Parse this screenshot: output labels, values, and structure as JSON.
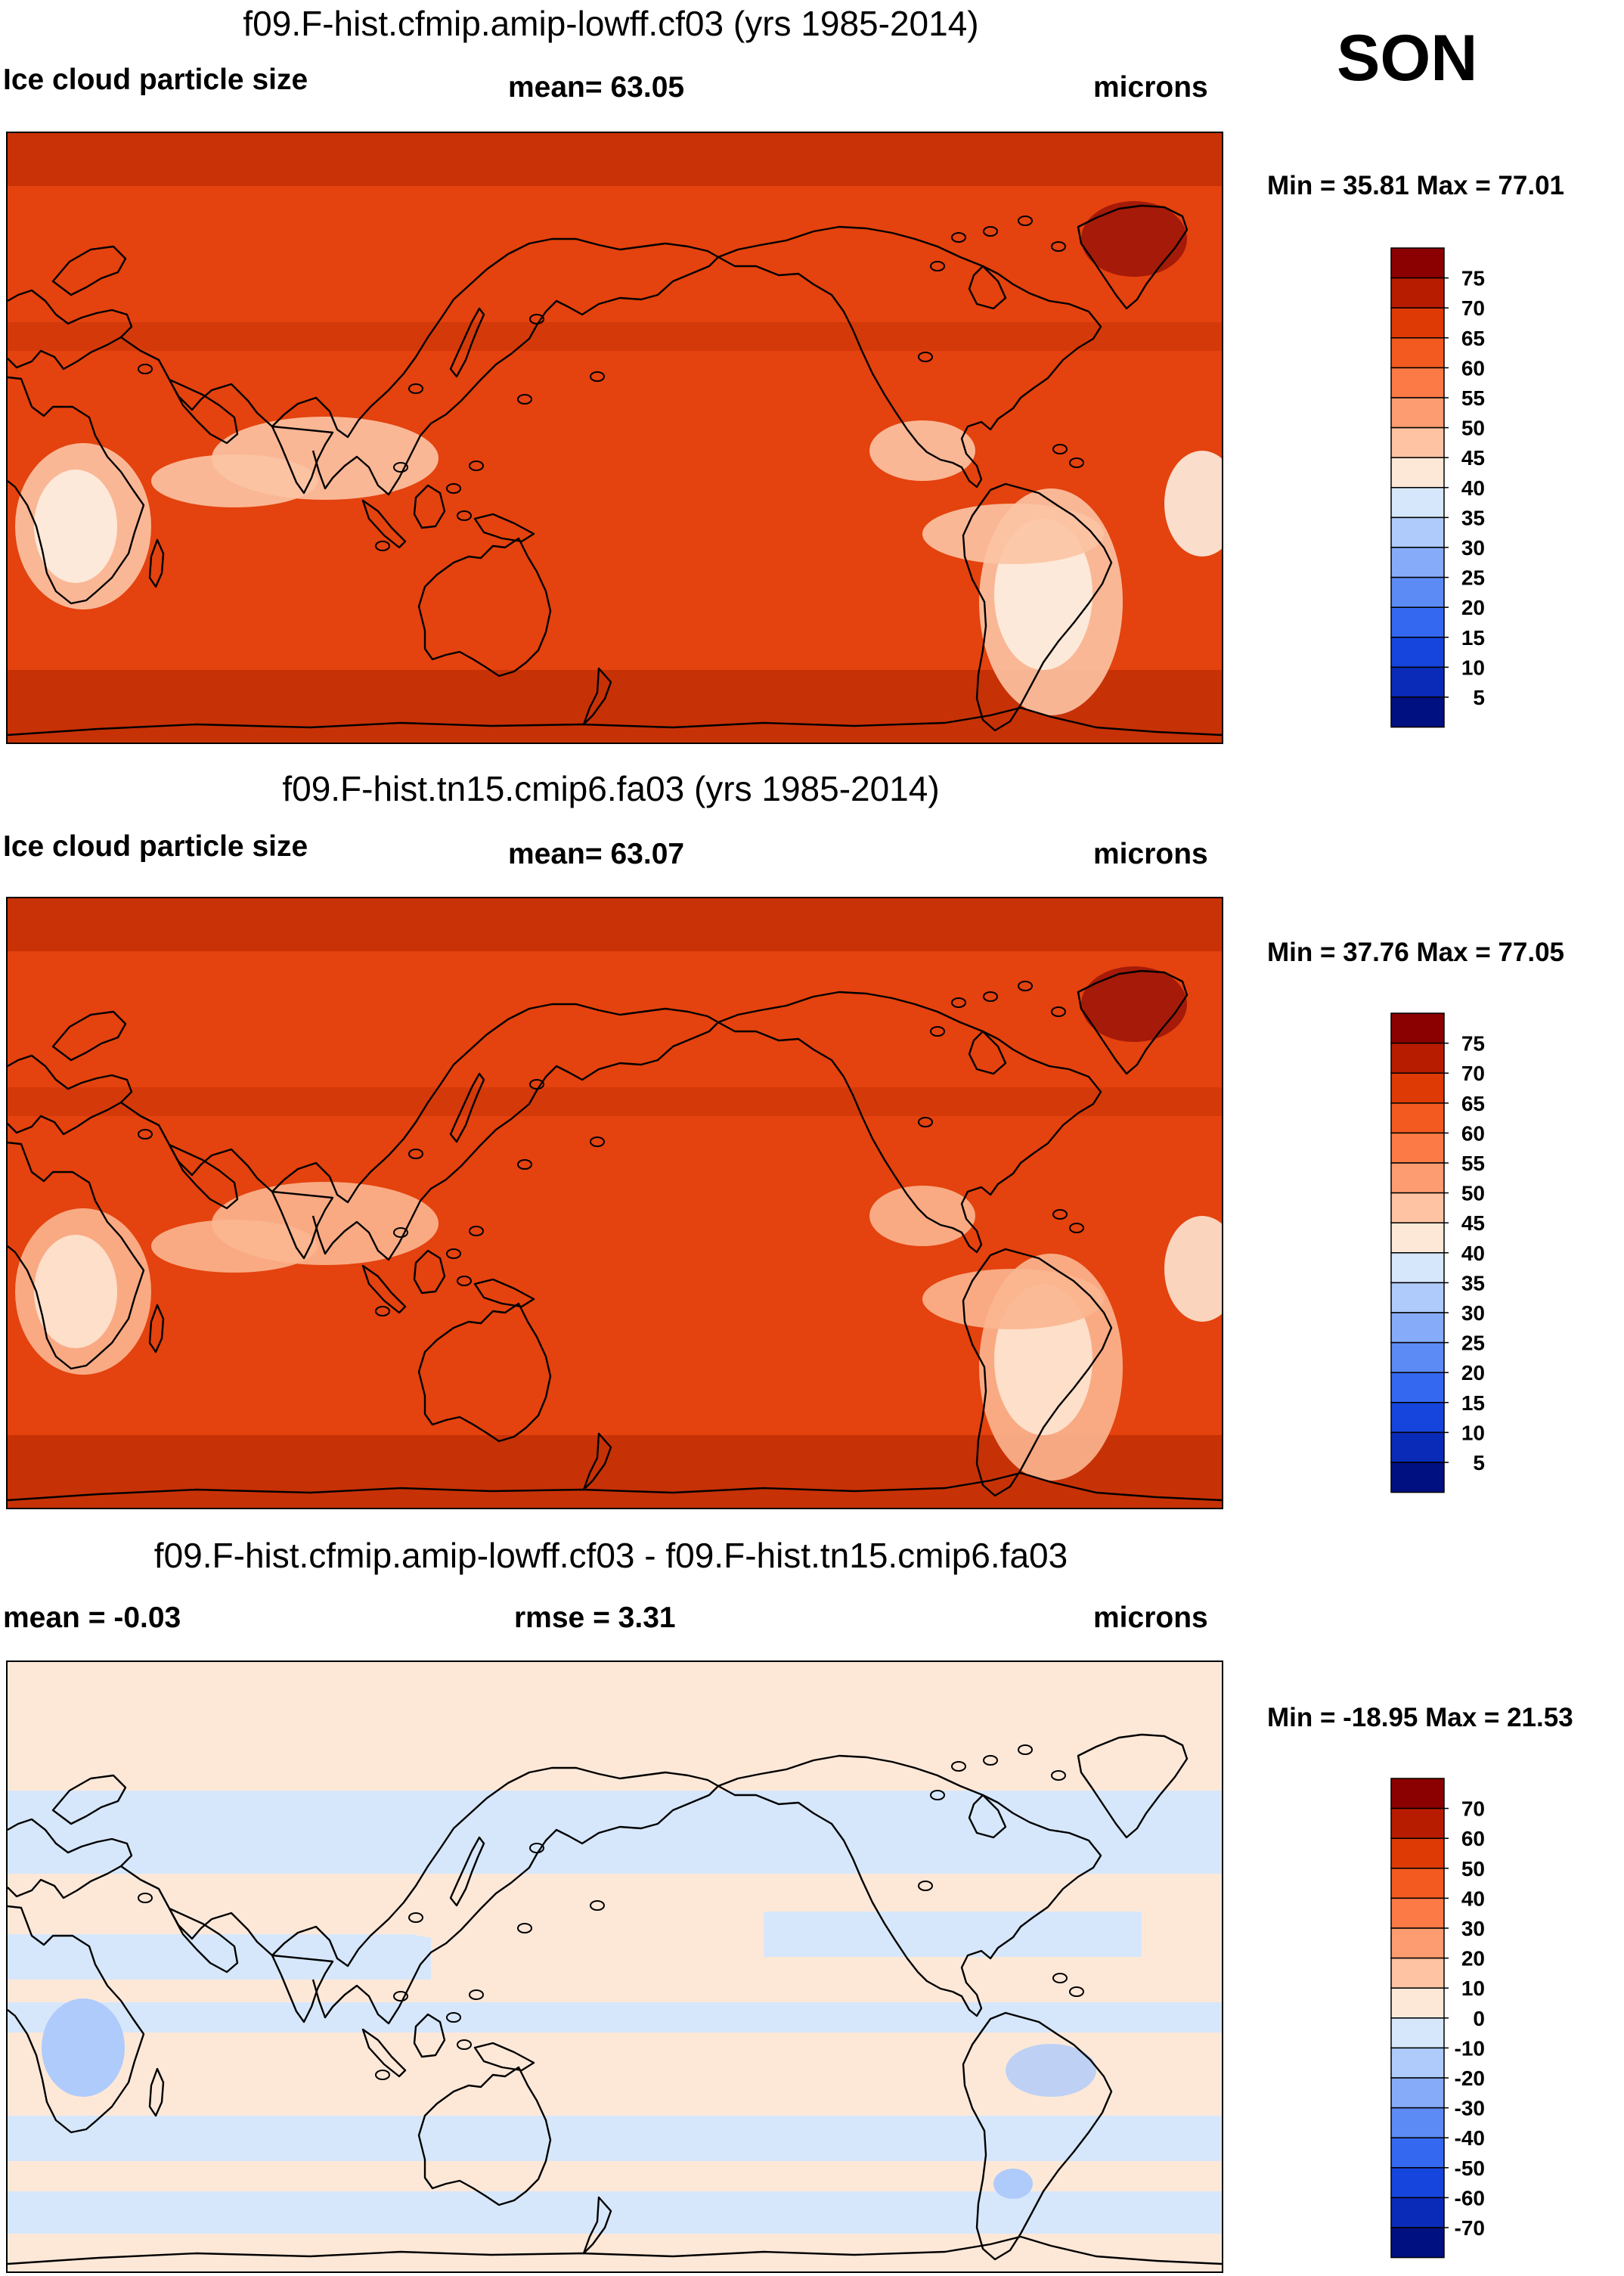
{
  "season": "SON",
  "chart_data": [
    {
      "type": "heatmap",
      "title": "f09.F-hist.cfmip.amip-lowff.cf03 (yrs 1985-2014)",
      "variable": "Ice cloud particle size",
      "stat_text": "mean=  63.05",
      "units": "microns",
      "min": 35.81,
      "max": 77.01,
      "minmax_text": "Min =  35.81 Max =  77.01",
      "colorbar_labels": [
        "75",
        "70",
        "65",
        "60",
        "55",
        "50",
        "45",
        "40",
        "35",
        "30",
        "25",
        "20",
        "15",
        "10",
        "5"
      ],
      "colorbar_colors": [
        "#8b0000",
        "#b81c00",
        "#dd3a05",
        "#f25a20",
        "#fc7a45",
        "#fd9c70",
        "#fdc3a2",
        "#fde8d8",
        "#d6e7fb",
        "#aecbfb",
        "#86acf9",
        "#5d8bf5",
        "#3468f0",
        "#1545dd",
        "#0a2ab8",
        "#001080"
      ],
      "field": {
        "base": "#e4420e",
        "land_plume": "#fdeee0",
        "tropical_land": "#fcc4a4",
        "storm_track": "#c22e05",
        "greenland": "#a51a08"
      }
    },
    {
      "type": "heatmap",
      "title": "f09.F-hist.tn15.cmip6.fa03 (yrs 1985-2014)",
      "variable": "Ice cloud particle size",
      "stat_text": "mean=  63.07",
      "units": "microns",
      "min": 37.76,
      "max": 77.05,
      "minmax_text": "Min =  37.76 Max =  77.05",
      "colorbar_labels": [
        "75",
        "70",
        "65",
        "60",
        "55",
        "50",
        "45",
        "40",
        "35",
        "30",
        "25",
        "20",
        "15",
        "10",
        "5"
      ],
      "colorbar_colors": [
        "#8b0000",
        "#b81c00",
        "#dd3a05",
        "#f25a20",
        "#fc7a45",
        "#fd9c70",
        "#fdc3a2",
        "#fde8d8",
        "#d6e7fb",
        "#aecbfb",
        "#86acf9",
        "#5d8bf5",
        "#3468f0",
        "#1545dd",
        "#0a2ab8",
        "#001080"
      ],
      "field": {
        "base": "#e4420e",
        "land_plume": "#fde4d2",
        "tropical_land": "#fbb690",
        "storm_track": "#c22e05",
        "greenland": "#a51a08"
      }
    },
    {
      "type": "heatmap",
      "title": "f09.F-hist.cfmip.amip-lowff.cf03 - f09.F-hist.tn15.cmip6.fa03",
      "stat_left_text": "mean =  -0.03",
      "stat_text": "rmse =   3.31",
      "units": "microns",
      "min": -18.95,
      "max": 21.53,
      "minmax_text": "Min = -18.95 Max =  21.53",
      "colorbar_labels": [
        "70",
        "60",
        "50",
        "40",
        "30",
        "20",
        "10",
        "0",
        "-10",
        "-20",
        "-30",
        "-40",
        "-50",
        "-60",
        "-70"
      ],
      "colorbar_colors": [
        "#8b0000",
        "#b81c00",
        "#dd3a05",
        "#f25a20",
        "#fc7a45",
        "#fd9c70",
        "#fdc3a2",
        "#fde8d8",
        "#d6e7fb",
        "#aecbfb",
        "#86acf9",
        "#5d8bf5",
        "#3468f0",
        "#1545dd",
        "#0a2ab8",
        "#001080"
      ],
      "field": {
        "positive": "#fde8d8",
        "negative": "#d6e7fb",
        "strong_negative": "#aecbfb",
        "strong_positive": "#fbd0b8"
      }
    }
  ]
}
